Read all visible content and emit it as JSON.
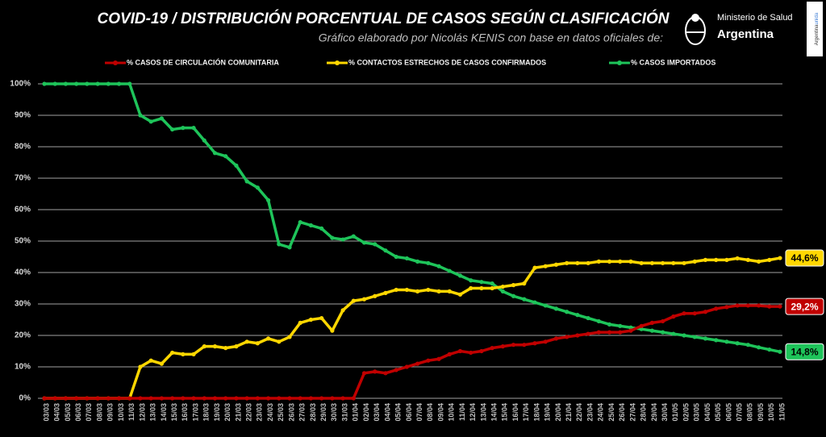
{
  "chart_data": {
    "type": "line",
    "title": "COVID-19  /  DISTRIBUCIÓN PORCENTUAL DE CASOS SEGÚN CLASIFICACIÓN",
    "subtitle": "Gráfico elaborado por Nicolás KENIS con base en datos oficiales de:",
    "logo_text": [
      "Ministerio de Salud",
      "Argentina"
    ],
    "side_text": [
      "Argentina",
      "unida"
    ],
    "categories": [
      "03/03",
      "04/03",
      "05/03",
      "06/03",
      "07/03",
      "08/03",
      "09/03",
      "10/03",
      "11/03",
      "12/03",
      "13/03",
      "14/03",
      "15/03",
      "16/03",
      "17/03",
      "18/03",
      "19/03",
      "20/03",
      "21/03",
      "22/03",
      "23/03",
      "24/03",
      "25/03",
      "26/03",
      "27/03",
      "28/03",
      "29/03",
      "30/03",
      "31/03",
      "01/04",
      "02/04",
      "03/04",
      "04/04",
      "05/04",
      "06/04",
      "07/04",
      "08/04",
      "09/04",
      "10/04",
      "11/04",
      "12/04",
      "13/04",
      "14/04",
      "15/04",
      "16/04",
      "17/04",
      "18/04",
      "19/04",
      "20/04",
      "21/04",
      "22/04",
      "23/04",
      "24/04",
      "25/04",
      "26/04",
      "27/04",
      "28/04",
      "29/04",
      "30/04",
      "01/05",
      "02/05",
      "03/05",
      "04/05",
      "05/05",
      "06/05",
      "07/05",
      "08/05",
      "09/05",
      "10/05",
      "11/05"
    ],
    "series": [
      {
        "name": "% CASOS DE CIRCULACIÓN COMUNITARIA",
        "color": "#c00000",
        "label_text_color": "#ffffff",
        "values": [
          0,
          0,
          0,
          0,
          0,
          0,
          0,
          0,
          0,
          0,
          0,
          0,
          0,
          0,
          0,
          0,
          0,
          0,
          0,
          0,
          0,
          0,
          0,
          0,
          0,
          0,
          0,
          0,
          0,
          0,
          8,
          8.5,
          8,
          9,
          10,
          11,
          12,
          12.5,
          14,
          15,
          14.5,
          15,
          16,
          16.5,
          17,
          17,
          17.5,
          18,
          19,
          19.5,
          20,
          20.5,
          21,
          21,
          21,
          21.5,
          23,
          24,
          24.5,
          26,
          27,
          27,
          27.5,
          28.5,
          29,
          29.5,
          29.5,
          29.5,
          29.2,
          29.2
        ],
        "value_labels": [
          null,
          null,
          null,
          null,
          null,
          null,
          null,
          null,
          null,
          null,
          null,
          null,
          null,
          null,
          null,
          null,
          null,
          null,
          null,
          null,
          null,
          null,
          null,
          null,
          null,
          null,
          null,
          null,
          null,
          null,
          null,
          null,
          null,
          null,
          null,
          null,
          null,
          null,
          null,
          null,
          null,
          null,
          null,
          null,
          null,
          null,
          null,
          null,
          null,
          null,
          null,
          null,
          null,
          null,
          null,
          null,
          null,
          null,
          null,
          null,
          null,
          null,
          null,
          null,
          null,
          null,
          null,
          null,
          null,
          "29,2%"
        ]
      },
      {
        "name": "% CONTACTOS ESTRECHOS DE CASOS CONFIRMADOS",
        "color": "#ffd700",
        "label_text_color": "#000000",
        "values": [
          0,
          0,
          0,
          0,
          0,
          0,
          0,
          0,
          0,
          10,
          12,
          11,
          14.5,
          14,
          14,
          16.5,
          16.5,
          16,
          16.5,
          18,
          17.5,
          19,
          18,
          19.5,
          24,
          25,
          25.5,
          21.5,
          28,
          31,
          31.5,
          32.5,
          33.5,
          34.5,
          34.5,
          34,
          34.5,
          34,
          34,
          33,
          35,
          35,
          35,
          35.5,
          36,
          36.5,
          41.5,
          42,
          42.5,
          43,
          43,
          43,
          43.5,
          43.5,
          43.5,
          43.5,
          43,
          43,
          43,
          43,
          43,
          43.5,
          44,
          44,
          44,
          44.5,
          44,
          43.5,
          44,
          44.6
        ],
        "value_labels": [
          null,
          null,
          null,
          null,
          null,
          null,
          null,
          null,
          null,
          null,
          null,
          null,
          null,
          null,
          null,
          null,
          null,
          null,
          null,
          null,
          null,
          null,
          null,
          null,
          null,
          null,
          null,
          null,
          null,
          null,
          null,
          null,
          null,
          null,
          null,
          null,
          null,
          null,
          null,
          null,
          null,
          null,
          null,
          null,
          null,
          null,
          null,
          null,
          null,
          null,
          null,
          null,
          null,
          null,
          null,
          null,
          null,
          null,
          null,
          null,
          null,
          null,
          null,
          null,
          null,
          null,
          null,
          null,
          null,
          "44,6%"
        ]
      },
      {
        "name": "% CASOS IMPORTADOS",
        "color": "#1ec45a",
        "label_text_color": "#000000",
        "values": [
          100,
          100,
          100,
          100,
          100,
          100,
          100,
          100,
          100,
          90,
          88,
          89,
          85.5,
          86,
          86,
          82,
          78,
          77,
          74,
          69,
          67,
          63,
          49,
          48,
          56,
          55,
          54,
          51,
          50.5,
          51.5,
          49.5,
          49,
          47,
          45,
          44.5,
          43.5,
          43,
          42,
          40.5,
          39,
          37.5,
          37,
          36.5,
          34,
          32.5,
          31.5,
          30.5,
          29.5,
          28.5,
          27.5,
          26.5,
          25.5,
          24.5,
          23.5,
          23,
          22.5,
          22,
          21.5,
          21,
          20.5,
          20,
          19.5,
          19,
          18.5,
          18,
          17.5,
          17,
          16.2,
          15.5,
          14.8
        ],
        "value_labels": [
          null,
          null,
          null,
          null,
          null,
          null,
          null,
          null,
          null,
          null,
          null,
          null,
          null,
          null,
          null,
          null,
          null,
          null,
          null,
          null,
          null,
          null,
          null,
          null,
          null,
          null,
          null,
          null,
          null,
          null,
          null,
          null,
          null,
          null,
          null,
          null,
          null,
          null,
          null,
          null,
          null,
          null,
          null,
          null,
          null,
          null,
          null,
          null,
          null,
          null,
          null,
          null,
          null,
          null,
          null,
          null,
          null,
          null,
          null,
          null,
          null,
          null,
          null,
          null,
          null,
          null,
          null,
          null,
          null,
          "14,8%"
        ]
      }
    ],
    "ylim": [
      0,
      100
    ],
    "yticks": [
      {
        "value": 0,
        "label": "0%"
      },
      {
        "value": 10,
        "label": "10%"
      },
      {
        "value": 20,
        "label": "20%"
      },
      {
        "value": 30,
        "label": "30%"
      },
      {
        "value": 40,
        "label": "40%"
      },
      {
        "value": 50,
        "label": "50%"
      },
      {
        "value": 60,
        "label": "60%"
      },
      {
        "value": 70,
        "label": "70%"
      },
      {
        "value": 80,
        "label": "80%"
      },
      {
        "value": 90,
        "label": "90%"
      },
      {
        "value": 100,
        "label": "100%"
      }
    ],
    "grid": true,
    "legend": "top"
  }
}
